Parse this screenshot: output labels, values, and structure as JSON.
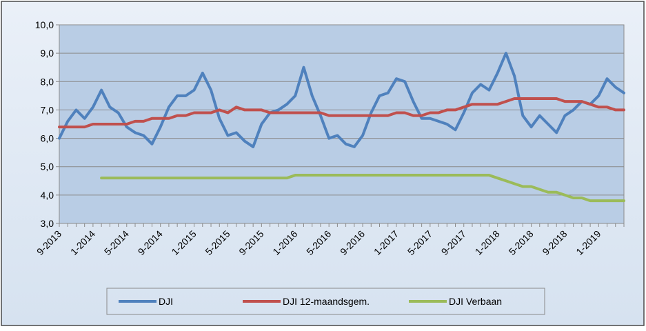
{
  "chart_data": {
    "type": "line",
    "categories": [
      "9-2013",
      null,
      null,
      null,
      "1-2014",
      null,
      null,
      null,
      "5-2014",
      null,
      null,
      null,
      "9-2014",
      null,
      null,
      null,
      "1-2015",
      null,
      null,
      null,
      "5-2015",
      null,
      null,
      null,
      "9-2015",
      null,
      null,
      null,
      "1-2016",
      null,
      null,
      null,
      "5-2016",
      null,
      null,
      null,
      "9-2016",
      null,
      null,
      null,
      "1-2017",
      null,
      null,
      null,
      "5-2017",
      null,
      null,
      null,
      "9-2017",
      null,
      null,
      null,
      "1-2018",
      null,
      null,
      null,
      "5-2018",
      null,
      null,
      null,
      "9-2018",
      null,
      null,
      null,
      "1-2019",
      null,
      null,
      null
    ],
    "series": [
      {
        "name": "DJI",
        "color": "#4f81bd",
        "values": [
          6.0,
          6.6,
          7.0,
          6.7,
          7.1,
          7.7,
          7.1,
          6.9,
          6.4,
          6.2,
          6.1,
          5.8,
          6.4,
          7.1,
          7.5,
          7.5,
          7.7,
          8.3,
          7.7,
          6.7,
          6.1,
          6.2,
          5.9,
          5.7,
          6.5,
          6.9,
          7.0,
          7.2,
          7.5,
          8.5,
          7.5,
          6.8,
          6.0,
          6.1,
          5.8,
          5.7,
          6.1,
          6.9,
          7.5,
          7.6,
          8.1,
          8.0,
          7.3,
          6.7,
          6.7,
          6.6,
          6.5,
          6.3,
          6.9,
          7.6,
          7.9,
          7.7,
          8.3,
          9.0,
          8.2,
          6.8,
          6.4,
          6.8,
          6.5,
          6.2,
          6.8,
          7.0,
          7.3,
          7.2,
          7.5,
          8.1,
          7.8,
          7.6
        ]
      },
      {
        "name": "DJI 12-maandsgem.",
        "color": "#c0504d",
        "values": [
          6.4,
          6.4,
          6.4,
          6.4,
          6.5,
          6.5,
          6.5,
          6.5,
          6.5,
          6.6,
          6.6,
          6.7,
          6.7,
          6.7,
          6.8,
          6.8,
          6.9,
          6.9,
          6.9,
          7.0,
          6.9,
          7.1,
          7.0,
          7.0,
          7.0,
          6.9,
          6.9,
          6.9,
          6.9,
          6.9,
          6.9,
          6.9,
          6.8,
          6.8,
          6.8,
          6.8,
          6.8,
          6.8,
          6.8,
          6.8,
          6.9,
          6.9,
          6.8,
          6.8,
          6.9,
          6.9,
          7.0,
          7.0,
          7.1,
          7.2,
          7.2,
          7.2,
          7.2,
          7.3,
          7.4,
          7.4,
          7.4,
          7.4,
          7.4,
          7.4,
          7.3,
          7.3,
          7.3,
          7.2,
          7.1,
          7.1,
          7.0,
          7.0
        ]
      },
      {
        "name": "DJI Verbaan",
        "color": "#9bbb59",
        "values": [
          null,
          null,
          null,
          null,
          null,
          4.6,
          4.6,
          4.6,
          4.6,
          4.6,
          4.6,
          4.6,
          4.6,
          4.6,
          4.6,
          4.6,
          4.6,
          4.6,
          4.6,
          4.6,
          4.6,
          4.6,
          4.6,
          4.6,
          4.6,
          4.6,
          4.6,
          4.6,
          4.7,
          4.7,
          4.7,
          4.7,
          4.7,
          4.7,
          4.7,
          4.7,
          4.7,
          4.7,
          4.7,
          4.7,
          4.7,
          4.7,
          4.7,
          4.7,
          4.7,
          4.7,
          4.7,
          4.7,
          4.7,
          4.7,
          4.7,
          4.7,
          4.6,
          4.5,
          4.4,
          4.3,
          4.3,
          4.2,
          4.1,
          4.1,
          4.0,
          3.9,
          3.9,
          3.8,
          3.8,
          3.8,
          3.8,
          3.8
        ]
      }
    ],
    "ylim": [
      3,
      10
    ],
    "yticks": [
      {
        "value": 3,
        "label": "3,0"
      },
      {
        "value": 4,
        "label": "4,0"
      },
      {
        "value": 5,
        "label": "5,0"
      },
      {
        "value": 6,
        "label": "6,0"
      },
      {
        "value": 7,
        "label": "7,0"
      },
      {
        "value": 8,
        "label": "8,0"
      },
      {
        "value": 9,
        "label": "9,0"
      },
      {
        "value": 10,
        "label": "10,0"
      }
    ],
    "grid": true
  }
}
